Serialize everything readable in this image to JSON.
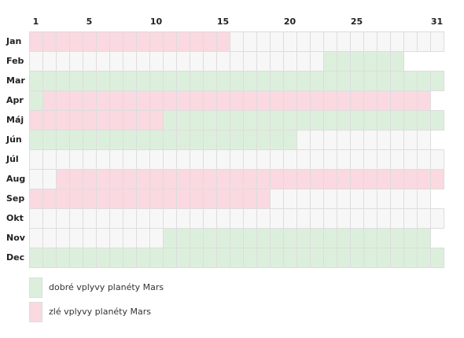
{
  "chart_data": {
    "type": "heatmap",
    "day_labels": [
      "1",
      "5",
      "10",
      "15",
      "20",
      "25",
      "31"
    ],
    "day_label_values": [
      1,
      5,
      10,
      15,
      20,
      25,
      31
    ],
    "days_in_view": 31,
    "colors": {
      "good": "#dcefdc",
      "bad": "#fad9e0",
      "empty": "#f7f7f7",
      "grid": "#dddddd"
    },
    "months": [
      {
        "name": "Jan",
        "days": 31,
        "bands": [
          {
            "from": 1,
            "to": 15,
            "type": "bad"
          }
        ]
      },
      {
        "name": "Feb",
        "days": 28,
        "bands": [
          {
            "from": 23,
            "to": 28,
            "type": "good"
          }
        ]
      },
      {
        "name": "Mar",
        "days": 31,
        "bands": [
          {
            "from": 1,
            "to": 31,
            "type": "good"
          }
        ]
      },
      {
        "name": "Apr",
        "days": 30,
        "bands": [
          {
            "from": 1,
            "to": 1,
            "type": "good"
          },
          {
            "from": 2,
            "to": 30,
            "type": "bad"
          }
        ]
      },
      {
        "name": "Máj",
        "days": 31,
        "bands": [
          {
            "from": 1,
            "to": 10,
            "type": "bad"
          },
          {
            "from": 11,
            "to": 31,
            "type": "good"
          }
        ]
      },
      {
        "name": "Jún",
        "days": 30,
        "bands": [
          {
            "from": 1,
            "to": 20,
            "type": "good"
          }
        ]
      },
      {
        "name": "Júl",
        "days": 31,
        "bands": []
      },
      {
        "name": "Aug",
        "days": 31,
        "bands": [
          {
            "from": 3,
            "to": 31,
            "type": "bad"
          }
        ]
      },
      {
        "name": "Sep",
        "days": 30,
        "bands": [
          {
            "from": 1,
            "to": 18,
            "type": "bad"
          }
        ]
      },
      {
        "name": "Okt",
        "days": 31,
        "bands": []
      },
      {
        "name": "Nov",
        "days": 30,
        "bands": [
          {
            "from": 11,
            "to": 30,
            "type": "good"
          }
        ]
      },
      {
        "name": "Dec",
        "days": 31,
        "bands": [
          {
            "from": 1,
            "to": 31,
            "type": "good"
          }
        ]
      }
    ],
    "legend": [
      {
        "label": "dobré vplyvy planéty Mars",
        "type": "good"
      },
      {
        "label": "zlé vplyvy planéty Mars",
        "type": "bad"
      }
    ]
  }
}
